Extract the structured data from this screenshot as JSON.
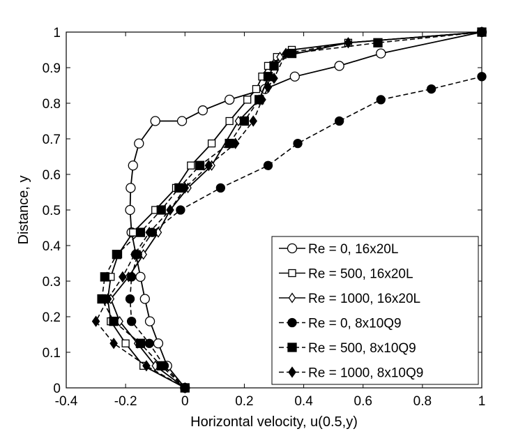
{
  "chart_data": {
    "type": "line",
    "xlabel": "Horizontal velocity, u(0.5,y)",
    "ylabel": "Distance, y",
    "xlim": [
      -0.4,
      1
    ],
    "ylim": [
      0,
      1
    ],
    "xticks": [
      "-0.4",
      "-0.2",
      "0",
      "0.2",
      "0.4",
      "0.6",
      "0.8",
      "1"
    ],
    "yticks": [
      "0",
      "0.1",
      "0.2",
      "0.3",
      "0.4",
      "0.5",
      "0.6",
      "0.7",
      "0.8",
      "0.9",
      "1"
    ],
    "grid": false,
    "legend_position": "bottom-right",
    "series": [
      {
        "name": "Re = 0, 16x20L",
        "marker": "circle-open",
        "line": "solid",
        "x": [
          0,
          -0.06,
          -0.09,
          -0.118,
          -0.135,
          -0.15,
          -0.165,
          -0.18,
          -0.185,
          -0.183,
          -0.175,
          -0.155,
          -0.1,
          -0.01,
          0.06,
          0.15,
          0.27,
          0.37,
          0.52,
          0.66,
          1.0
        ],
        "y": [
          0,
          0.062,
          0.125,
          0.187,
          0.25,
          0.312,
          0.375,
          0.437,
          0.5,
          0.562,
          0.625,
          0.687,
          0.75,
          0.75,
          0.78,
          0.81,
          0.84,
          0.875,
          0.905,
          0.94,
          1.0
        ]
      },
      {
        "name": "Re = 500, 16x20L",
        "marker": "square-open",
        "line": "solid",
        "x": [
          0,
          -0.14,
          -0.2,
          -0.25,
          -0.26,
          -0.25,
          -0.225,
          -0.175,
          -0.1,
          -0.03,
          0.02,
          0.09,
          0.15,
          0.21,
          0.24,
          0.26,
          0.28,
          0.31,
          0.36,
          0.55,
          1.0
        ],
        "y": [
          0,
          0.062,
          0.125,
          0.187,
          0.25,
          0.312,
          0.375,
          0.437,
          0.5,
          0.562,
          0.625,
          0.687,
          0.75,
          0.81,
          0.84,
          0.875,
          0.905,
          0.93,
          0.95,
          0.97,
          1.0
        ]
      },
      {
        "name": "Re = 1000, 16x20L",
        "marker": "diamond-open",
        "line": "solid",
        "x": [
          0,
          -0.1,
          -0.16,
          -0.22,
          -0.25,
          -0.19,
          -0.14,
          -0.09,
          -0.05,
          0.01,
          0.09,
          0.18,
          0.25,
          0.28,
          0.3,
          0.32,
          0.55,
          1.0
        ],
        "y": [
          0,
          0.062,
          0.125,
          0.187,
          0.25,
          0.312,
          0.375,
          0.437,
          0.5,
          0.562,
          0.625,
          0.75,
          0.81,
          0.87,
          0.91,
          0.93,
          0.97,
          1.0
        ]
      },
      {
        "name": "Re = 0, 8x10Q9",
        "marker": "circle-filled",
        "line": "dashed",
        "x": [
          0,
          -0.07,
          -0.12,
          -0.18,
          -0.185,
          -0.18,
          -0.16,
          -0.11,
          -0.015,
          0.12,
          0.28,
          0.38,
          0.52,
          0.66,
          0.83,
          1.0
        ],
        "y": [
          0,
          0.062,
          0.125,
          0.187,
          0.25,
          0.312,
          0.375,
          0.437,
          0.5,
          0.562,
          0.625,
          0.687,
          0.75,
          0.81,
          0.84,
          0.875
        ],
        "note": ""
      },
      {
        "name": "Re = 500, 8x10Q9",
        "marker": "square-filled",
        "line": "dashed",
        "x": [
          0,
          -0.08,
          -0.15,
          -0.24,
          -0.28,
          -0.27,
          -0.23,
          -0.15,
          -0.08,
          -0.02,
          0.05,
          0.15,
          0.2,
          0.25,
          0.28,
          0.3,
          0.36,
          0.65,
          1.0
        ],
        "y": [
          0,
          0.062,
          0.125,
          0.187,
          0.25,
          0.312,
          0.375,
          0.437,
          0.5,
          0.562,
          0.625,
          0.687,
          0.75,
          0.81,
          0.875,
          0.905,
          0.94,
          0.97,
          1.0
        ]
      },
      {
        "name": "Re = 1000, 8x10Q9",
        "marker": "diamond-filled",
        "line": "dashed",
        "x": [
          0,
          -0.13,
          -0.24,
          -0.3,
          -0.26,
          -0.21,
          -0.17,
          -0.12,
          -0.05,
          0.0,
          0.08,
          0.17,
          0.23,
          0.26,
          0.28,
          0.3,
          0.34,
          0.55,
          1.0
        ],
        "y": [
          0,
          0.062,
          0.125,
          0.187,
          0.25,
          0.312,
          0.375,
          0.437,
          0.5,
          0.562,
          0.625,
          0.687,
          0.75,
          0.81,
          0.845,
          0.87,
          0.94,
          0.97,
          1.0
        ]
      }
    ]
  }
}
